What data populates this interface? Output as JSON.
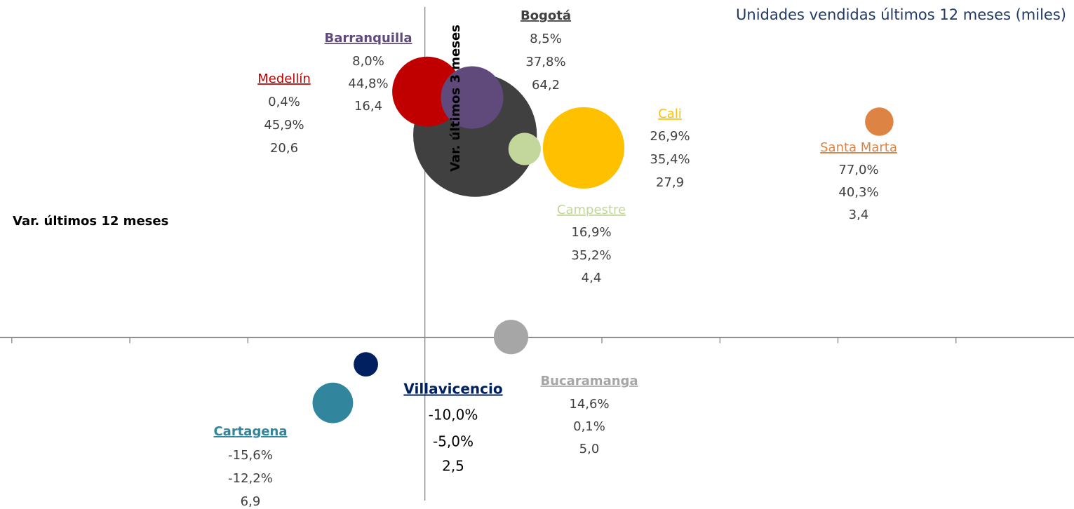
{
  "chart_data": {
    "type": "bubble",
    "title": "Unidades vendidas últimos 12 meses (miles)",
    "x_label": "Var. últimos 12 meses",
    "y_label": "Var. últimos 3 meses",
    "xlim": [
      -72,
      110
    ],
    "ylim": [
      -32,
      63
    ],
    "xticks": [
      -70,
      -50,
      -30,
      30,
      50,
      70,
      90
    ],
    "series": [
      {
        "name": "Bogotá",
        "color": "#404040",
        "x": [
          8.5
        ],
        "values": [
          37.8
        ],
        "sizes": [
          64.2
        ],
        "x_labels": [
          "8,5%"
        ],
        "value_labels": [
          "37,8%"
        ],
        "size_labels": [
          "64,2"
        ]
      },
      {
        "name": "Medellín",
        "color": "#c00000",
        "x": [
          0.4
        ],
        "values": [
          45.9
        ],
        "sizes": [
          20.6
        ],
        "x_labels": [
          "0,4%"
        ],
        "value_labels": [
          "45,9%"
        ],
        "size_labels": [
          "20,6"
        ]
      },
      {
        "name": "Barranquilla",
        "color": "#604a7b",
        "x": [
          8.0
        ],
        "values": [
          44.8
        ],
        "sizes": [
          16.4
        ],
        "x_labels": [
          "8,0%"
        ],
        "value_labels": [
          "44,8%"
        ],
        "size_labels": [
          "16,4"
        ]
      },
      {
        "name": "Campestre",
        "color": "#c3d69b",
        "x": [
          16.9
        ],
        "values": [
          35.2
        ],
        "sizes": [
          4.4
        ],
        "x_labels": [
          "16,9%"
        ],
        "value_labels": [
          "35,2%"
        ],
        "size_labels": [
          "4,4"
        ]
      },
      {
        "name": "Cali",
        "color": "#ffc000",
        "x": [
          26.9
        ],
        "values": [
          35.4
        ],
        "sizes": [
          27.9
        ],
        "x_labels": [
          "26,9%"
        ],
        "value_labels": [
          "35,4%"
        ],
        "size_labels": [
          "27,9"
        ]
      },
      {
        "name": "Santa Marta",
        "color": "#dd8444",
        "x": [
          77.0
        ],
        "values": [
          40.3
        ],
        "sizes": [
          3.4
        ],
        "x_labels": [
          "77,0%"
        ],
        "value_labels": [
          "40,3%"
        ],
        "size_labels": [
          "3,4"
        ]
      },
      {
        "name": "Bucaramanga",
        "color": "#a6a6a6",
        "x": [
          14.6
        ],
        "values": [
          0.1
        ],
        "sizes": [
          5.0
        ],
        "x_labels": [
          "14,6%"
        ],
        "value_labels": [
          "0,1%"
        ],
        "size_labels": [
          "5,0"
        ]
      },
      {
        "name": "Villavicencio",
        "color": "#002060",
        "x": [
          -10.0
        ],
        "values": [
          -5.0
        ],
        "sizes": [
          2.5
        ],
        "x_labels": [
          "-10,0%"
        ],
        "value_labels": [
          "-5,0%"
        ],
        "size_labels": [
          "2,5"
        ]
      },
      {
        "name": "Cartagena",
        "color": "#31859c",
        "x": [
          -15.6
        ],
        "values": [
          -12.2
        ],
        "sizes": [
          6.9
        ],
        "x_labels": [
          "-15,6%"
        ],
        "value_labels": [
          "-12,2%"
        ],
        "size_labels": [
          "6,9"
        ]
      }
    ]
  }
}
